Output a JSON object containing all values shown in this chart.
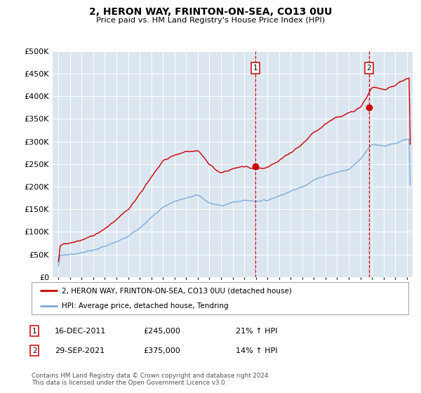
{
  "title": "2, HERON WAY, FRINTON-ON-SEA, CO13 0UU",
  "subtitle": "Price paid vs. HM Land Registry's House Price Index (HPI)",
  "ylim": [
    0,
    500000
  ],
  "yticks": [
    0,
    50000,
    100000,
    150000,
    200000,
    250000,
    300000,
    350000,
    400000,
    450000,
    500000
  ],
  "ytick_labels": [
    "£0",
    "£50K",
    "£100K",
    "£150K",
    "£200K",
    "£250K",
    "£300K",
    "£350K",
    "£400K",
    "£450K",
    "£500K"
  ],
  "bg_color": "#dce6f1",
  "line1_color": "#cc0000",
  "line2_color": "#7aaddb",
  "sale1_date_num": 2011.96,
  "sale1_price": 245000,
  "sale2_date_num": 2021.75,
  "sale2_price": 375000,
  "legend_line1": "2, HERON WAY, FRINTON-ON-SEA, CO13 0UU (detached house)",
  "legend_line2": "HPI: Average price, detached house, Tendring",
  "ann1_date": "16-DEC-2011",
  "ann1_price": "£245,000",
  "ann1_hpi": "21% ↑ HPI",
  "ann2_date": "29-SEP-2021",
  "ann2_price": "£375,000",
  "ann2_hpi": "14% ↑ HPI",
  "footnote": "Contains HM Land Registry data © Crown copyright and database right 2024.\nThis data is licensed under the Open Government Licence v3.0.",
  "xmin": 1994.5,
  "xmax": 2025.5,
  "hpi_years": [
    1995,
    1996,
    1997,
    1998,
    1999,
    2000,
    2001,
    2002,
    2003,
    2004,
    2005,
    2006,
    2007,
    2008,
    2009,
    2010,
    2011,
    2012,
    2013,
    2014,
    2015,
    2016,
    2017,
    2018,
    2019,
    2020,
    2021,
    2022,
    2023,
    2024,
    2025
  ],
  "hpi_values": [
    48000,
    50000,
    54000,
    60000,
    68000,
    78000,
    90000,
    110000,
    132000,
    155000,
    168000,
    175000,
    182000,
    163000,
    158000,
    165000,
    170000,
    168000,
    170000,
    180000,
    190000,
    200000,
    215000,
    225000,
    232000,
    238000,
    262000,
    295000,
    290000,
    295000,
    305000
  ],
  "red_years": [
    1995,
    1996,
    1997,
    1998,
    1999,
    2000,
    2001,
    2002,
    2003,
    2004,
    2005,
    2006,
    2007,
    2008,
    2009,
    2010,
    2011,
    2012,
    2013,
    2014,
    2015,
    2016,
    2017,
    2018,
    2019,
    2020,
    2021,
    2022,
    2023,
    2024,
    2025
  ],
  "red_values": [
    70000,
    75000,
    82000,
    92000,
    108000,
    128000,
    150000,
    185000,
    222000,
    258000,
    270000,
    278000,
    280000,
    248000,
    230000,
    240000,
    245000,
    238000,
    242000,
    258000,
    275000,
    295000,
    320000,
    340000,
    355000,
    362000,
    375000,
    420000,
    415000,
    425000,
    440000
  ]
}
